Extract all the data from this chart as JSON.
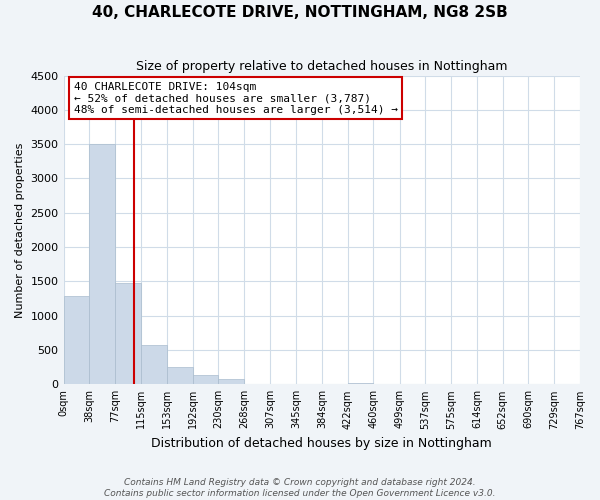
{
  "title": "40, CHARLECOTE DRIVE, NOTTINGHAM, NG8 2SB",
  "subtitle": "Size of property relative to detached houses in Nottingham",
  "xlabel": "Distribution of detached houses by size in Nottingham",
  "ylabel": "Number of detached properties",
  "bin_edges": [
    0,
    38,
    77,
    115,
    153,
    192,
    230,
    268,
    307,
    345,
    384,
    422,
    460,
    499,
    537,
    575,
    614,
    652,
    690,
    729,
    767
  ],
  "bin_labels": [
    "0sqm",
    "38sqm",
    "77sqm",
    "115sqm",
    "153sqm",
    "192sqm",
    "230sqm",
    "268sqm",
    "307sqm",
    "345sqm",
    "384sqm",
    "422sqm",
    "460sqm",
    "499sqm",
    "537sqm",
    "575sqm",
    "614sqm",
    "652sqm",
    "690sqm",
    "729sqm",
    "767sqm"
  ],
  "counts": [
    1280,
    3500,
    1480,
    570,
    245,
    130,
    75,
    0,
    0,
    0,
    0,
    25,
    0,
    0,
    0,
    0,
    0,
    0,
    0,
    0
  ],
  "bar_color": "#ccd9e8",
  "bar_edge_color": "#aabcce",
  "property_line_x": 104,
  "property_line_color": "#cc0000",
  "ylim": [
    0,
    4500
  ],
  "yticks": [
    0,
    500,
    1000,
    1500,
    2000,
    2500,
    3000,
    3500,
    4000,
    4500
  ],
  "annotation_text": "40 CHARLECOTE DRIVE: 104sqm\n← 52% of detached houses are smaller (3,787)\n48% of semi-detached houses are larger (3,514) →",
  "annotation_box_color": "#ffffff",
  "annotation_box_edge": "#cc0000",
  "footer_line1": "Contains HM Land Registry data © Crown copyright and database right 2024.",
  "footer_line2": "Contains public sector information licensed under the Open Government Licence v3.0.",
  "plot_bg_color": "#ffffff",
  "fig_bg_color": "#f0f4f8",
  "grid_color": "#d0dce8"
}
